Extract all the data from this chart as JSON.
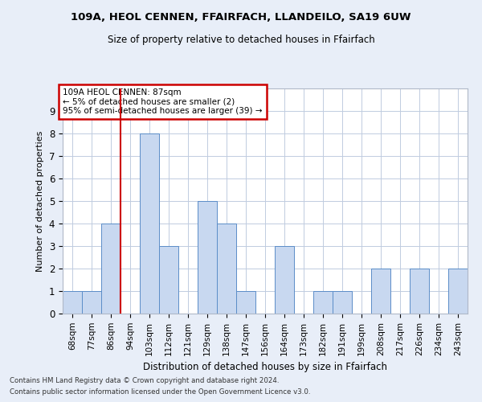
{
  "title1": "109A, HEOL CENNEN, FFAIRFACH, LLANDEILO, SA19 6UW",
  "title2": "Size of property relative to detached houses in Ffairfach",
  "xlabel": "Distribution of detached houses by size in Ffairfach",
  "ylabel": "Number of detached properties",
  "categories": [
    "68sqm",
    "77sqm",
    "86sqm",
    "94sqm",
    "103sqm",
    "112sqm",
    "121sqm",
    "129sqm",
    "138sqm",
    "147sqm",
    "156sqm",
    "164sqm",
    "173sqm",
    "182sqm",
    "191sqm",
    "199sqm",
    "208sqm",
    "217sqm",
    "226sqm",
    "234sqm",
    "243sqm"
  ],
  "values": [
    1,
    1,
    4,
    0,
    8,
    3,
    0,
    5,
    4,
    1,
    0,
    3,
    0,
    1,
    1,
    0,
    2,
    0,
    2,
    0,
    2
  ],
  "bar_color": "#c8d8f0",
  "bar_edge_color": "#5b8dc8",
  "red_line_x": 2.5,
  "annotation_text": "109A HEOL CENNEN: 87sqm\n← 5% of detached houses are smaller (2)\n95% of semi-detached houses are larger (39) →",
  "annotation_box_color": "#ffffff",
  "annotation_box_edge": "#cc0000",
  "ylim": [
    0,
    10
  ],
  "yticks": [
    0,
    1,
    2,
    3,
    4,
    5,
    6,
    7,
    8,
    9
  ],
  "footnote1": "Contains HM Land Registry data © Crown copyright and database right 2024.",
  "footnote2": "Contains public sector information licensed under the Open Government Licence v3.0.",
  "bg_color": "#e8eef8",
  "plot_bg_color": "#ffffff",
  "grid_color": "#c0cce0"
}
